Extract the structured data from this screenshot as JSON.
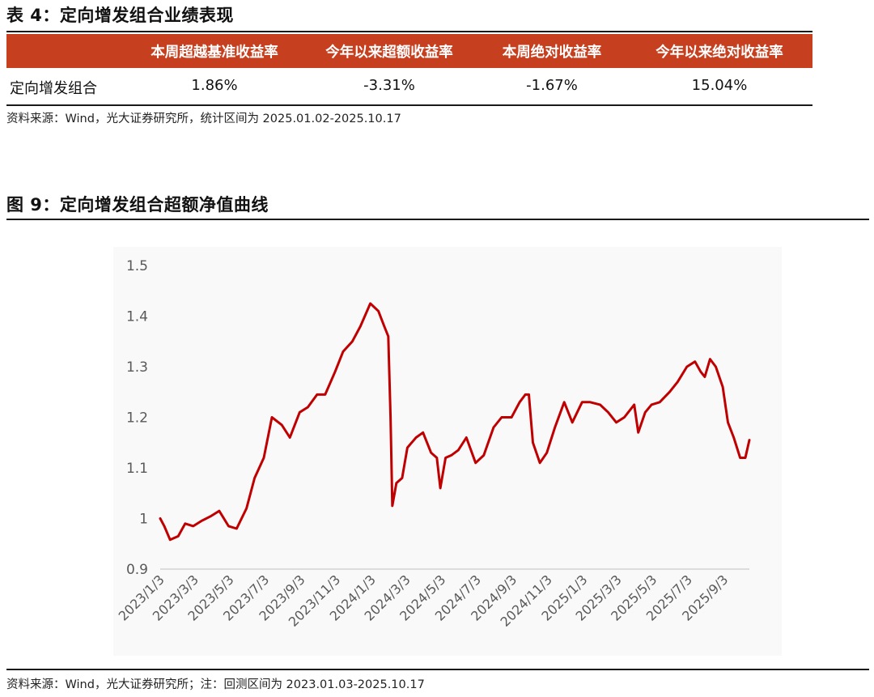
{
  "table_section": {
    "title": "表 4：定向增发组合业绩表现",
    "headers": [
      "本周超越基准收益率",
      "今年以来超额收益率",
      "本周绝对收益率",
      "今年以来绝对收益率"
    ],
    "row": {
      "name": "定向增发组合",
      "values": [
        "1.86%",
        "-3.31%",
        "-1.67%",
        "15.04%"
      ]
    },
    "source": "资料来源：Wind，光大证券研究所，统计区间为 2025.01.02-2025.10.17"
  },
  "chart_section": {
    "title": "图 9：定向增发组合超额净值曲线",
    "source": "资料来源：Wind，光大证券研究所；注：回测区间为 2023.01.03-2025.10.17"
  },
  "colors": {
    "header_band": "#c6401f",
    "series_line": "#c00000",
    "plot_bg": "#f9f9f9"
  },
  "chart_data": {
    "type": "line",
    "title": "",
    "xlabel": "",
    "ylabel": "",
    "ylim": [
      0.9,
      1.5
    ],
    "yticks": [
      "0.9",
      "1",
      "1.1",
      "1.2",
      "1.3",
      "1.4",
      "1.5"
    ],
    "xticks": [
      "2023/1/3",
      "2023/3/3",
      "2023/5/3",
      "2023/7/3",
      "2023/9/3",
      "2023/11/3",
      "2024/1/3",
      "2024/3/3",
      "2024/5/3",
      "2024/7/3",
      "2024/9/3",
      "2024/11/3",
      "2025/1/3",
      "2025/3/3",
      "2025/5/3",
      "2025/7/3",
      "2025/9/3"
    ],
    "grid": false,
    "legend": "none",
    "series": [
      {
        "x": [
          "2023-01-03",
          "2023-01-10",
          "2023-01-20",
          "2023-02-03",
          "2023-02-15",
          "2023-03-01",
          "2023-03-15",
          "2023-04-01",
          "2023-04-15",
          "2023-05-01",
          "2023-05-15",
          "2023-06-01",
          "2023-06-15",
          "2023-07-01",
          "2023-07-15",
          "2023-08-01",
          "2023-08-15",
          "2023-09-01",
          "2023-09-15",
          "2023-10-01",
          "2023-10-15",
          "2023-11-01",
          "2023-11-15",
          "2023-12-01",
          "2023-12-15",
          "2024-01-01",
          "2024-01-15",
          "2024-01-25",
          "2024-02-01",
          "2024-02-05",
          "2024-02-08",
          "2024-02-15",
          "2024-02-25",
          "2024-03-05",
          "2024-03-20",
          "2024-04-01",
          "2024-04-15",
          "2024-04-25",
          "2024-05-01",
          "2024-05-10",
          "2024-05-20",
          "2024-06-01",
          "2024-06-15",
          "2024-07-01",
          "2024-07-15",
          "2024-08-01",
          "2024-08-15",
          "2024-09-01",
          "2024-09-15",
          "2024-09-25",
          "2024-10-01",
          "2024-10-08",
          "2024-10-20",
          "2024-11-01",
          "2024-11-15",
          "2024-12-01",
          "2024-12-15",
          "2025-01-01",
          "2025-01-15",
          "2025-02-01",
          "2025-02-15",
          "2025-03-01",
          "2025-03-15",
          "2025-04-01",
          "2025-04-08",
          "2025-04-20",
          "2025-05-01",
          "2025-05-15",
          "2025-06-01",
          "2025-06-15",
          "2025-07-01",
          "2025-07-15",
          "2025-07-25",
          "2025-08-01",
          "2025-08-10",
          "2025-08-20",
          "2025-09-01",
          "2025-09-10",
          "2025-09-20",
          "2025-10-01",
          "2025-10-10",
          "2025-10-17"
        ],
        "values": [
          1.0,
          0.985,
          0.958,
          0.965,
          0.99,
          0.985,
          0.995,
          1.005,
          1.015,
          0.985,
          0.98,
          1.02,
          1.08,
          1.12,
          1.2,
          1.185,
          1.16,
          1.21,
          1.22,
          1.245,
          1.245,
          1.29,
          1.33,
          1.35,
          1.38,
          1.425,
          1.41,
          1.38,
          1.36,
          1.2,
          1.025,
          1.07,
          1.08,
          1.14,
          1.16,
          1.17,
          1.13,
          1.12,
          1.06,
          1.12,
          1.125,
          1.135,
          1.16,
          1.11,
          1.125,
          1.18,
          1.2,
          1.2,
          1.23,
          1.245,
          1.245,
          1.15,
          1.11,
          1.13,
          1.18,
          1.23,
          1.19,
          1.23,
          1.23,
          1.225,
          1.21,
          1.19,
          1.2,
          1.225,
          1.17,
          1.21,
          1.225,
          1.23,
          1.25,
          1.27,
          1.3,
          1.31,
          1.29,
          1.28,
          1.315,
          1.3,
          1.26,
          1.19,
          1.16,
          1.12,
          1.12,
          1.155
        ]
      }
    ]
  }
}
